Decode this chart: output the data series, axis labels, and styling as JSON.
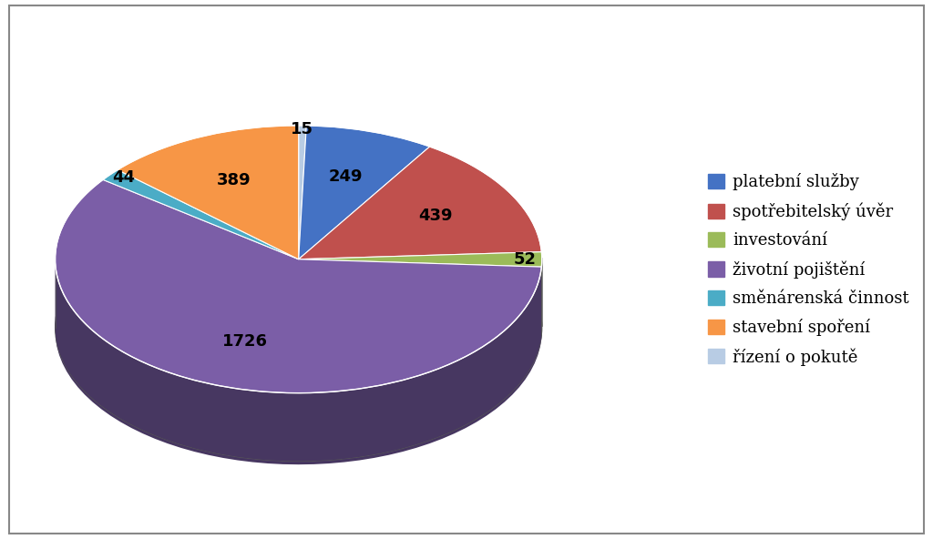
{
  "labels": [
    "platební služby",
    "spotřebitelský úvěr",
    "investování",
    "životní pojištění",
    "směnárenská činnost",
    "stavební spoření",
    "řízení o pokutě"
  ],
  "values": [
    249,
    439,
    52,
    1726,
    44,
    389,
    15
  ],
  "colors": [
    "#4472C4",
    "#C0504D",
    "#9BBB59",
    "#7B5EA7",
    "#4BACC6",
    "#F79646",
    "#B8CCE4"
  ],
  "label_texts": [
    "249",
    "439",
    "52",
    "1726",
    "44",
    "389",
    "15"
  ],
  "background_color": "#FFFFFF",
  "font_size": 13,
  "legend_font_size": 13,
  "figsize": [
    10.24,
    5.92
  ],
  "dpi": 100
}
